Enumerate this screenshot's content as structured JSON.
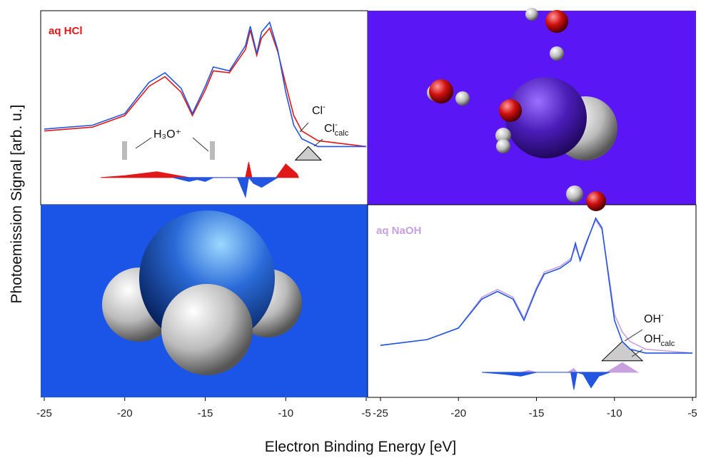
{
  "figure": {
    "xlabel": "Electron Binding Energy [eV]",
    "ylabel": "Photoemission Signal [arb. u.]"
  },
  "chart_data": [
    {
      "type": "line",
      "title": "aq HCl",
      "title_color": "#e01818",
      "xlim": [
        -25,
        -5
      ],
      "xticks": [
        -25,
        -20,
        -15,
        -10,
        -5
      ],
      "ylim": [
        0,
        100
      ],
      "series": [
        {
          "name": "aq HCl",
          "color": "#e01818",
          "x": [
            -25,
            -22,
            -20,
            -18.5,
            -17.5,
            -16.5,
            -15.8,
            -15,
            -14.5,
            -13.5,
            -12.5,
            -12.2,
            -11.8,
            -11.5,
            -11,
            -10.5,
            -10,
            -9.5,
            -9,
            -8,
            -5
          ],
          "values": [
            38,
            40,
            46,
            61,
            66,
            58,
            46,
            59,
            69,
            68,
            80,
            90,
            77,
            86,
            91,
            79,
            62,
            46,
            38,
            33,
            30
          ]
        },
        {
          "color": "#2255e0",
          "x": [
            -25,
            -22,
            -20,
            -18.5,
            -17.5,
            -16.5,
            -15.8,
            -15,
            -14.5,
            -13.5,
            -12.5,
            -12.2,
            -11.8,
            -11.5,
            -11,
            -10.5,
            -10,
            -9.5,
            -9,
            -8,
            -5
          ],
          "values": [
            39,
            41,
            47,
            63,
            68,
            60,
            47,
            61,
            71,
            69,
            82,
            92,
            78,
            89,
            94,
            80,
            58,
            41,
            34,
            30,
            30
          ]
        },
        {
          "color": "#cccccc",
          "fill": true,
          "x": [
            -9.4,
            -8.6,
            -7.8
          ],
          "values": [
            23,
            30,
            23
          ]
        },
        {
          "color": "#e01818",
          "fill": true,
          "x": [
            -21.5,
            -20,
            -18,
            -16,
            -13,
            -12.5,
            -12.3,
            -12.1,
            -11.9,
            -10.6,
            -10,
            -9.3,
            -9.2
          ],
          "values": [
            14,
            15,
            17,
            14,
            14,
            14,
            22,
            14,
            14,
            14,
            21,
            16,
            14
          ]
        },
        {
          "color": "#2255e0",
          "fill": true,
          "x": [
            -17,
            -16,
            -15.5,
            -15,
            -14.5,
            -13,
            -12.5,
            -12.3,
            -12,
            -11.5,
            -10.5
          ],
          "values": [
            14,
            12,
            13,
            12,
            14,
            14,
            4,
            14,
            11,
            9,
            14
          ]
        }
      ],
      "annotations": [
        {
          "text": "H₃O⁺"
        },
        {
          "text": "Cl",
          "sup": "-"
        },
        {
          "text": "Cl",
          "sup": "-",
          "sub": "calc"
        }
      ]
    },
    {
      "type": "line",
      "title": "aq NaOH",
      "title_color": "#c8a0e0",
      "xlim": [
        -25,
        -5
      ],
      "xticks": [
        -25,
        -20,
        -15,
        -10,
        -5
      ],
      "ylim": [
        0,
        100
      ],
      "series": [
        {
          "name": "aq NaOH",
          "color": "#c8a0e0",
          "x": [
            -25,
            -22,
            -20,
            -18.5,
            -17.5,
            -16.5,
            -15.8,
            -15,
            -14.5,
            -13.5,
            -12.8,
            -12.5,
            -12.2,
            -11.8,
            -11.2,
            -10.8,
            -10.3,
            -10,
            -9.5,
            -9,
            -8,
            -5
          ],
          "values": [
            27,
            30,
            36,
            52,
            56,
            52,
            41,
            57,
            65,
            68,
            72,
            78,
            72,
            81,
            92,
            87,
            60,
            43,
            34,
            29,
            25,
            23
          ]
        },
        {
          "color": "#2255e0",
          "x": [
            -25,
            -22,
            -20,
            -18.5,
            -17.5,
            -16.5,
            -15.8,
            -15,
            -14.5,
            -13.5,
            -12.8,
            -12.5,
            -12.2,
            -11.8,
            -11.2,
            -10.8,
            -10.3,
            -10,
            -9.5,
            -9,
            -8,
            -5
          ],
          "values": [
            27,
            30,
            36,
            51,
            55,
            51,
            40,
            56,
            64,
            67,
            71,
            80,
            71,
            80,
            93,
            88,
            58,
            40,
            29,
            25,
            23,
            23
          ]
        },
        {
          "color": "#cccccc",
          "fill": true,
          "x": [
            -10.8,
            -9.5,
            -8.2
          ],
          "values": [
            19,
            29,
            19
          ]
        },
        {
          "color": "#c8a0e0",
          "fill": true,
          "x": [
            -16,
            -15.5,
            -15,
            -13,
            -12.6,
            -12.4,
            -10.5,
            -9.5,
            -8.5
          ],
          "values": [
            13,
            14,
            13,
            13,
            15,
            13,
            13,
            18,
            13
          ]
        },
        {
          "color": "#2255e0",
          "fill": true,
          "x": [
            -18.5,
            -17,
            -16,
            -15,
            -12.8,
            -12.6,
            -12.4,
            -12,
            -11.5,
            -11,
            -10.3
          ],
          "values": [
            13,
            12,
            11,
            13,
            13,
            4,
            13,
            12,
            5,
            11,
            13
          ]
        }
      ],
      "annotations": [
        {
          "text": "OH",
          "sup": "-"
        },
        {
          "text": "OH",
          "sup": "-",
          "sub": "calc"
        }
      ]
    }
  ]
}
